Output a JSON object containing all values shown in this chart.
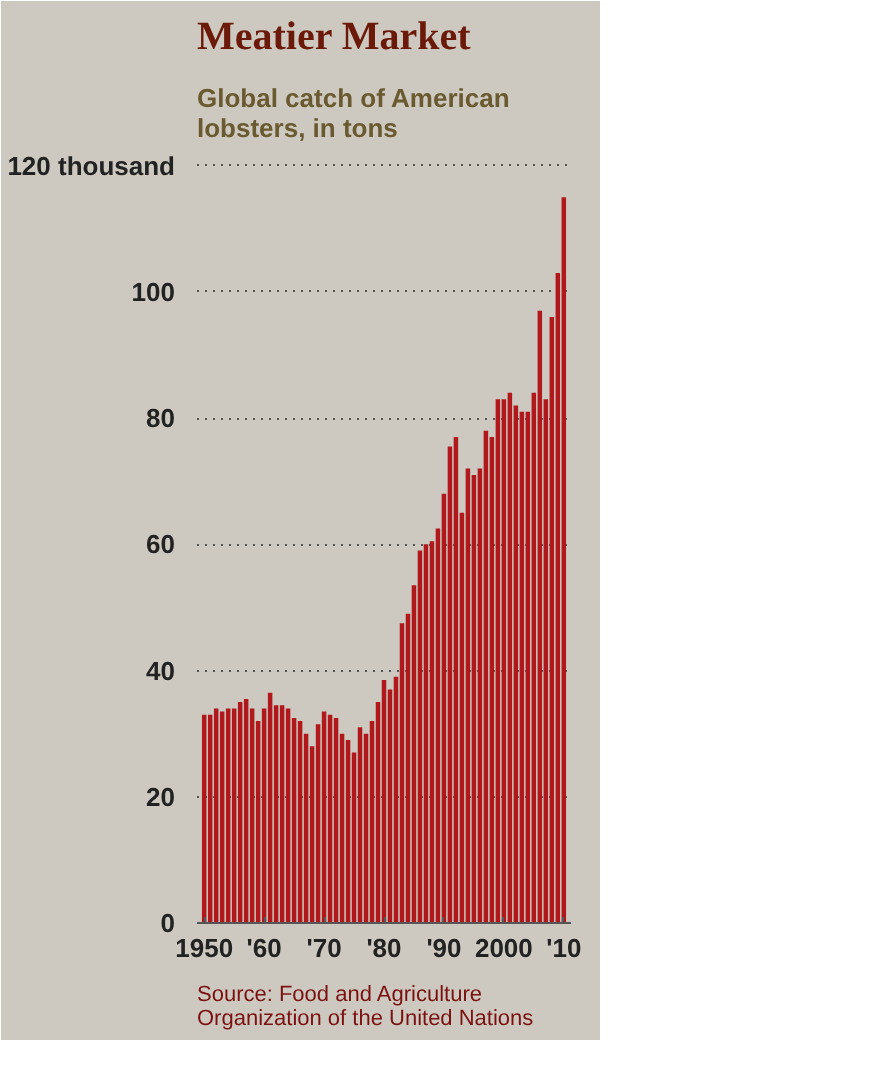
{
  "chart_data": {
    "type": "bar",
    "title": "Meatier Market",
    "subtitle": "Global catch of American lobsters, in tons",
    "annotations": [
      "Source: Food and Agriculture Organization of the United Nations"
    ],
    "x": [
      1950,
      1951,
      1952,
      1953,
      1954,
      1955,
      1956,
      1957,
      1958,
      1959,
      1960,
      1961,
      1962,
      1963,
      1964,
      1965,
      1966,
      1967,
      1968,
      1969,
      1970,
      1971,
      1972,
      1973,
      1974,
      1975,
      1976,
      1977,
      1978,
      1979,
      1980,
      1981,
      1982,
      1983,
      1984,
      1985,
      1986,
      1987,
      1988,
      1989,
      1990,
      1991,
      1992,
      1993,
      1994,
      1995,
      1996,
      1997,
      1998,
      1999,
      2000,
      2001,
      2002,
      2003,
      2004,
      2005,
      2006,
      2007,
      2008,
      2009,
      2010
    ],
    "values": [
      33,
      33,
      34,
      33.5,
      34,
      34,
      35,
      35.5,
      34,
      32,
      34,
      36.5,
      34.5,
      34.5,
      34,
      32.5,
      32,
      30,
      28,
      31.5,
      33.5,
      33,
      32.5,
      30,
      29,
      27,
      31,
      30,
      32,
      35,
      38.5,
      37,
      39,
      47.5,
      49,
      53.5,
      59,
      60,
      60.5,
      62.5,
      68,
      75.5,
      77,
      65,
      72,
      71,
      72,
      78,
      77,
      83,
      83,
      84,
      82,
      81,
      81,
      84,
      97,
      83,
      96,
      103,
      115
    ],
    "color": "#b0181c",
    "xlim": [
      1948.8,
      2011.2
    ],
    "xticks": [
      1950,
      {
        "value": 1960,
        "label": "'60"
      },
      {
        "value": 1970,
        "label": "'70"
      },
      {
        "value": 1980,
        "label": "'80"
      },
      {
        "value": 1990,
        "label": "'90"
      },
      2000,
      {
        "value": 2010,
        "label": "'10"
      }
    ],
    "ylim": [
      0,
      122
    ],
    "yticks": [
      0,
      20,
      40,
      60,
      80,
      100,
      {
        "value": 120,
        "label": "120 thousand"
      }
    ],
    "grid": "y"
  }
}
